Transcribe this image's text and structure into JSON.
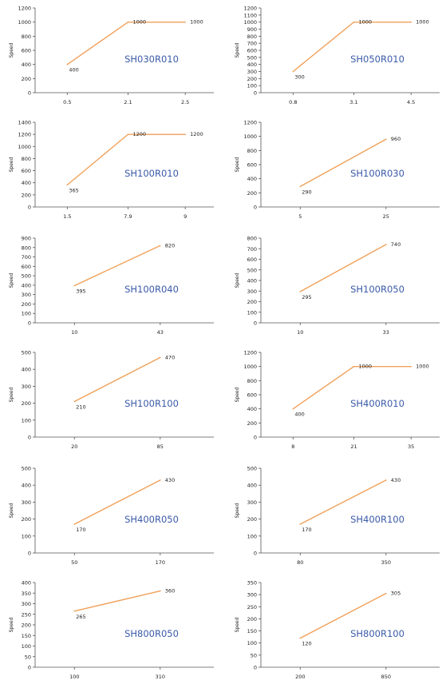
{
  "chart_data": [
    {
      "type": "line",
      "title": "SH030R010",
      "ylabel": "Speed",
      "ylim": [
        0,
        1200
      ],
      "yticks": [
        "0",
        "200",
        "400",
        "600",
        "800",
        "1000",
        "1200"
      ],
      "xcats": [
        "0.5",
        "2.1",
        "2.5"
      ],
      "points": [
        [
          0,
          400
        ],
        [
          1,
          1000
        ],
        [
          2,
          1000
        ]
      ],
      "labels": [
        "400",
        "1000",
        "1000"
      ]
    },
    {
      "type": "line",
      "title": "SH050R010",
      "ylabel": "Speed",
      "ylim": [
        0,
        1200
      ],
      "yticks": [
        "0",
        "100",
        "200",
        "300",
        "400",
        "500",
        "600",
        "700",
        "800",
        "900",
        "1000",
        "1100",
        "1200"
      ],
      "xcats": [
        "0.8",
        "3.1",
        "4.5"
      ],
      "points": [
        [
          0,
          300
        ],
        [
          1,
          1000
        ],
        [
          2,
          1000
        ]
      ],
      "labels": [
        "300",
        "1000",
        "1000"
      ]
    },
    {
      "type": "line",
      "title": "SH100R010",
      "ylabel": "Speed",
      "ylim": [
        0,
        1400
      ],
      "yticks": [
        "0",
        "200",
        "400",
        "600",
        "800",
        "1000",
        "1200",
        "1400"
      ],
      "xcats": [
        "1.5",
        "7.9",
        "9"
      ],
      "points": [
        [
          0,
          365
        ],
        [
          1,
          1200
        ],
        [
          2,
          1200
        ]
      ],
      "labels": [
        "365",
        "1200",
        "1200"
      ]
    },
    {
      "type": "line",
      "title": "SH100R030",
      "ylabel": "Speed",
      "ylim": [
        0,
        1200
      ],
      "yticks": [
        "0",
        "200",
        "400",
        "600",
        "800",
        "1000",
        "1200"
      ],
      "xcats": [
        "5",
        "25"
      ],
      "points": [
        [
          0,
          290
        ],
        [
          1,
          960
        ]
      ],
      "labels": [
        "290",
        "960"
      ]
    },
    {
      "type": "line",
      "title": "SH100R040",
      "ylabel": "Speed",
      "ylim": [
        0,
        900
      ],
      "yticks": [
        "0",
        "100",
        "200",
        "300",
        "400",
        "500",
        "600",
        "700",
        "800",
        "900"
      ],
      "xcats": [
        "10",
        "43"
      ],
      "points": [
        [
          0,
          395
        ],
        [
          1,
          820
        ]
      ],
      "labels": [
        "395",
        "820"
      ]
    },
    {
      "type": "line",
      "title": "SH100R050",
      "ylabel": "Speed",
      "ylim": [
        0,
        800
      ],
      "yticks": [
        "0",
        "100",
        "200",
        "300",
        "400",
        "500",
        "600",
        "700",
        "800"
      ],
      "xcats": [
        "10",
        "33"
      ],
      "points": [
        [
          0,
          295
        ],
        [
          1,
          740
        ]
      ],
      "labels": [
        "295",
        "740"
      ]
    },
    {
      "type": "line",
      "title": "SH100R100",
      "ylabel": "Speed",
      "ylim": [
        0,
        500
      ],
      "yticks": [
        "0",
        "100",
        "200",
        "300",
        "400",
        "500"
      ],
      "xcats": [
        "20",
        "85"
      ],
      "points": [
        [
          0,
          210
        ],
        [
          1,
          470
        ]
      ],
      "labels": [
        "210",
        "470"
      ]
    },
    {
      "type": "line",
      "title": "SH400R010",
      "ylabel": "Speed",
      "ylim": [
        0,
        1200
      ],
      "yticks": [
        "0",
        "200",
        "400",
        "600",
        "800",
        "1000",
        "1200"
      ],
      "xcats": [
        "8",
        "21",
        "35"
      ],
      "points": [
        [
          0,
          400
        ],
        [
          1,
          1000
        ],
        [
          2,
          1000
        ]
      ],
      "labels": [
        "400",
        "1000",
        "1000"
      ]
    },
    {
      "type": "line",
      "title": "SH400R050",
      "ylabel": "Speed",
      "ylim": [
        0,
        500
      ],
      "yticks": [
        "0",
        "100",
        "200",
        "300",
        "400",
        "500"
      ],
      "xcats": [
        "50",
        "170"
      ],
      "points": [
        [
          0,
          170
        ],
        [
          1,
          430
        ]
      ],
      "labels": [
        "170",
        "430"
      ]
    },
    {
      "type": "line",
      "title": "SH400R100",
      "ylabel": "Speed",
      "ylim": [
        0,
        500
      ],
      "yticks": [
        "0",
        "100",
        "200",
        "300",
        "400",
        "500"
      ],
      "xcats": [
        "80",
        "350"
      ],
      "points": [
        [
          0,
          170
        ],
        [
          1,
          430
        ]
      ],
      "labels": [
        "170",
        "430"
      ]
    },
    {
      "type": "line",
      "title": "SH800R050",
      "ylabel": "Speed",
      "ylim": [
        0,
        400
      ],
      "yticks": [
        "0",
        "50",
        "100",
        "150",
        "200",
        "250",
        "300",
        "350",
        "400"
      ],
      "xcats": [
        "100",
        "310"
      ],
      "points": [
        [
          0,
          265
        ],
        [
          1,
          360
        ]
      ],
      "labels": [
        "265",
        "360"
      ]
    },
    {
      "type": "line",
      "title": "SH800R100",
      "ylabel": "Speed",
      "ylim": [
        0,
        350
      ],
      "yticks": [
        "0",
        "50",
        "100",
        "150",
        "200",
        "250",
        "300",
        "350"
      ],
      "xcats": [
        "200",
        "850"
      ],
      "points": [
        [
          0,
          120
        ],
        [
          1,
          305
        ]
      ],
      "labels": [
        "120",
        "305"
      ]
    }
  ],
  "style": {
    "line_color": "#f0a15a",
    "title_color": "#3a5aa8",
    "axis_color": "#555555",
    "text_color": "#222222"
  }
}
